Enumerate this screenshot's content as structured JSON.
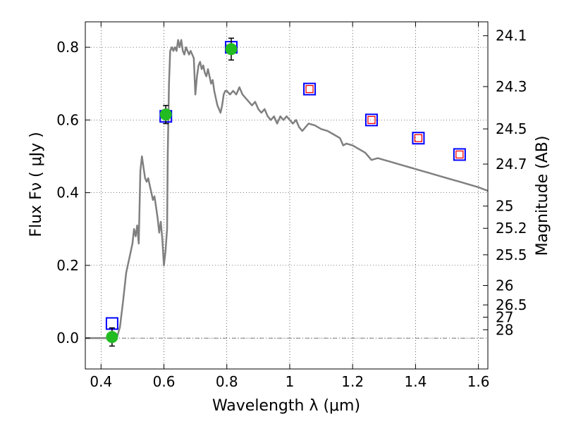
{
  "chart_data": {
    "type": "scatter",
    "title": "",
    "xlabel": "Wavelength  λ (μm)",
    "ylabel": "Flux  Fν  ( μJy )",
    "ylabel_right": "Magnitude (AB)",
    "xlim": [
      0.35,
      1.63
    ],
    "ylim": [
      -0.085,
      0.87
    ],
    "grid": true,
    "legend": "none",
    "x_ticks": [
      0.4,
      0.6,
      0.8,
      1.0,
      1.2,
      1.4,
      1.6
    ],
    "x_tick_labels": [
      "0.4",
      "0.6",
      "0.8",
      "1",
      "1.2",
      "1.4",
      "1.6"
    ],
    "y_ticks": [
      0.0,
      0.2,
      0.4,
      0.6,
      0.8
    ],
    "y_tick_labels": [
      "0.0",
      "0.2",
      "0.4",
      "0.6",
      "0.8"
    ],
    "mag_ticks": [
      24.1,
      24.3,
      24.5,
      24.7,
      25,
      25.2,
      25.5,
      26,
      26.5,
      27,
      28
    ],
    "mag_tick_labels": [
      "24.1",
      "24.3",
      "24.5",
      "24.7",
      "25",
      "25.2",
      "25.5",
      "26",
      "26.5",
      "27",
      "28"
    ],
    "zero_line_y": 0.0,
    "colors": {
      "model": "#808080",
      "observed_fill": "#22bb22",
      "model_box": "#0000ff",
      "model_box_inner": "#ff0000",
      "errorbar": "#000000"
    },
    "series": [
      {
        "kind": "line",
        "points": [
          [
            0.35,
            0.0
          ],
          [
            0.45,
            0.0
          ],
          [
            0.46,
            0.03
          ],
          [
            0.47,
            0.1
          ],
          [
            0.48,
            0.18
          ],
          [
            0.49,
            0.22
          ],
          [
            0.5,
            0.26
          ],
          [
            0.505,
            0.3
          ],
          [
            0.51,
            0.28
          ],
          [
            0.515,
            0.31
          ],
          [
            0.52,
            0.26
          ],
          [
            0.525,
            0.46
          ],
          [
            0.53,
            0.5
          ],
          [
            0.535,
            0.47
          ],
          [
            0.54,
            0.44
          ],
          [
            0.545,
            0.43
          ],
          [
            0.55,
            0.44
          ],
          [
            0.555,
            0.42
          ],
          [
            0.56,
            0.4
          ],
          [
            0.565,
            0.38
          ],
          [
            0.57,
            0.39
          ],
          [
            0.575,
            0.36
          ],
          [
            0.58,
            0.33
          ],
          [
            0.585,
            0.29
          ],
          [
            0.59,
            0.32
          ],
          [
            0.595,
            0.27
          ],
          [
            0.6,
            0.2
          ],
          [
            0.605,
            0.24
          ],
          [
            0.61,
            0.3
          ],
          [
            0.612,
            0.5
          ],
          [
            0.616,
            0.7
          ],
          [
            0.62,
            0.79
          ],
          [
            0.625,
            0.8
          ],
          [
            0.63,
            0.79
          ],
          [
            0.635,
            0.8
          ],
          [
            0.64,
            0.79
          ],
          [
            0.645,
            0.82
          ],
          [
            0.65,
            0.8
          ],
          [
            0.655,
            0.82
          ],
          [
            0.66,
            0.79
          ],
          [
            0.665,
            0.78
          ],
          [
            0.67,
            0.8
          ],
          [
            0.675,
            0.79
          ],
          [
            0.68,
            0.78
          ],
          [
            0.685,
            0.79
          ],
          [
            0.69,
            0.78
          ],
          [
            0.695,
            0.77
          ],
          [
            0.7,
            0.67
          ],
          [
            0.705,
            0.72
          ],
          [
            0.71,
            0.75
          ],
          [
            0.715,
            0.76
          ],
          [
            0.72,
            0.74
          ],
          [
            0.725,
            0.75
          ],
          [
            0.73,
            0.73
          ],
          [
            0.735,
            0.72
          ],
          [
            0.74,
            0.74
          ],
          [
            0.745,
            0.72
          ],
          [
            0.75,
            0.7
          ],
          [
            0.755,
            0.71
          ],
          [
            0.76,
            0.68
          ],
          [
            0.765,
            0.66
          ],
          [
            0.77,
            0.64
          ],
          [
            0.775,
            0.63
          ],
          [
            0.78,
            0.62
          ],
          [
            0.785,
            0.64
          ],
          [
            0.79,
            0.67
          ],
          [
            0.795,
            0.68
          ],
          [
            0.8,
            0.68
          ],
          [
            0.81,
            0.67
          ],
          [
            0.82,
            0.68
          ],
          [
            0.83,
            0.67
          ],
          [
            0.84,
            0.69
          ],
          [
            0.845,
            0.68
          ],
          [
            0.85,
            0.67
          ],
          [
            0.86,
            0.66
          ],
          [
            0.87,
            0.65
          ],
          [
            0.88,
            0.64
          ],
          [
            0.89,
            0.65
          ],
          [
            0.9,
            0.63
          ],
          [
            0.91,
            0.62
          ],
          [
            0.92,
            0.63
          ],
          [
            0.93,
            0.61
          ],
          [
            0.94,
            0.6
          ],
          [
            0.95,
            0.61
          ],
          [
            0.96,
            0.59
          ],
          [
            0.97,
            0.61
          ],
          [
            0.98,
            0.6
          ],
          [
            0.99,
            0.61
          ],
          [
            1.0,
            0.6
          ],
          [
            1.01,
            0.59
          ],
          [
            1.02,
            0.6
          ],
          [
            1.03,
            0.58
          ],
          [
            1.04,
            0.57
          ],
          [
            1.05,
            0.58
          ],
          [
            1.06,
            0.59
          ],
          [
            1.08,
            0.585
          ],
          [
            1.1,
            0.575
          ],
          [
            1.12,
            0.57
          ],
          [
            1.14,
            0.56
          ],
          [
            1.16,
            0.55
          ],
          [
            1.17,
            0.53
          ],
          [
            1.18,
            0.535
          ],
          [
            1.2,
            0.53
          ],
          [
            1.22,
            0.52
          ],
          [
            1.24,
            0.51
          ],
          [
            1.25,
            0.5
          ],
          [
            1.26,
            0.49
          ],
          [
            1.28,
            0.495
          ],
          [
            1.3,
            0.49
          ],
          [
            1.32,
            0.485
          ],
          [
            1.34,
            0.48
          ],
          [
            1.36,
            0.475
          ],
          [
            1.38,
            0.47
          ],
          [
            1.4,
            0.465
          ],
          [
            1.42,
            0.46
          ],
          [
            1.44,
            0.455
          ],
          [
            1.46,
            0.45
          ],
          [
            1.48,
            0.445
          ],
          [
            1.5,
            0.44
          ],
          [
            1.52,
            0.435
          ],
          [
            1.54,
            0.43
          ],
          [
            1.56,
            0.425
          ],
          [
            1.58,
            0.42
          ],
          [
            1.6,
            0.415
          ],
          [
            1.63,
            0.405
          ]
        ]
      },
      {
        "kind": "observed",
        "points": [
          {
            "x": 0.435,
            "y": 0.003,
            "err": 0.025
          },
          {
            "x": 0.606,
            "y": 0.615,
            "err": 0.025
          },
          {
            "x": 0.814,
            "y": 0.795,
            "err": 0.03
          }
        ]
      },
      {
        "kind": "model_photometry",
        "points": [
          {
            "x": 0.435,
            "y": 0.04,
            "inner": false
          },
          {
            "x": 0.606,
            "y": 0.61,
            "inner": false
          },
          {
            "x": 0.814,
            "y": 0.8,
            "inner": false
          },
          {
            "x": 1.063,
            "y": 0.685,
            "inner": true
          },
          {
            "x": 1.26,
            "y": 0.6,
            "inner": true
          },
          {
            "x": 1.409,
            "y": 0.55,
            "inner": true
          },
          {
            "x": 1.54,
            "y": 0.505,
            "inner": true
          }
        ]
      }
    ]
  }
}
